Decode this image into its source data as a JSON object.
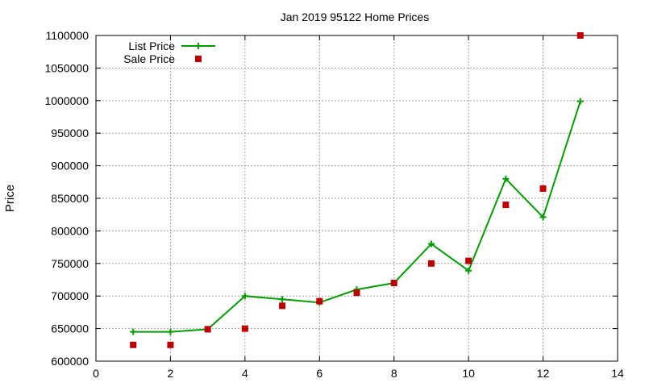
{
  "chart_data": {
    "type": "line",
    "title": "Jan 2019 95122 Home Prices",
    "xlabel": "",
    "ylabel": "Price",
    "xlim": [
      0,
      14
    ],
    "ylim": [
      600000,
      1100000
    ],
    "xticks": [
      0,
      2,
      4,
      6,
      8,
      10,
      12,
      14
    ],
    "yticks": [
      600000,
      650000,
      700000,
      750000,
      800000,
      850000,
      900000,
      950000,
      1000000,
      1050000,
      1100000
    ],
    "grid": true,
    "legend_position": "top-left",
    "series": [
      {
        "name": "List Price",
        "style": "line-plus",
        "color": "#00a000",
        "x": [
          1,
          2,
          3,
          4,
          5,
          6,
          7,
          8,
          9,
          10,
          11,
          12,
          13
        ],
        "y": [
          645000,
          645000,
          649000,
          700000,
          695000,
          690000,
          710000,
          720000,
          780000,
          739000,
          880000,
          821000,
          999000
        ]
      },
      {
        "name": "Sale Price",
        "style": "square-marker",
        "color": "#c00000",
        "x": [
          1,
          2,
          3,
          4,
          5,
          6,
          7,
          8,
          9,
          10,
          11,
          12,
          13
        ],
        "y": [
          625000,
          625000,
          649000,
          650000,
          685000,
          692000,
          705000,
          720000,
          750000,
          754000,
          840000,
          865000,
          1100000
        ]
      }
    ]
  }
}
